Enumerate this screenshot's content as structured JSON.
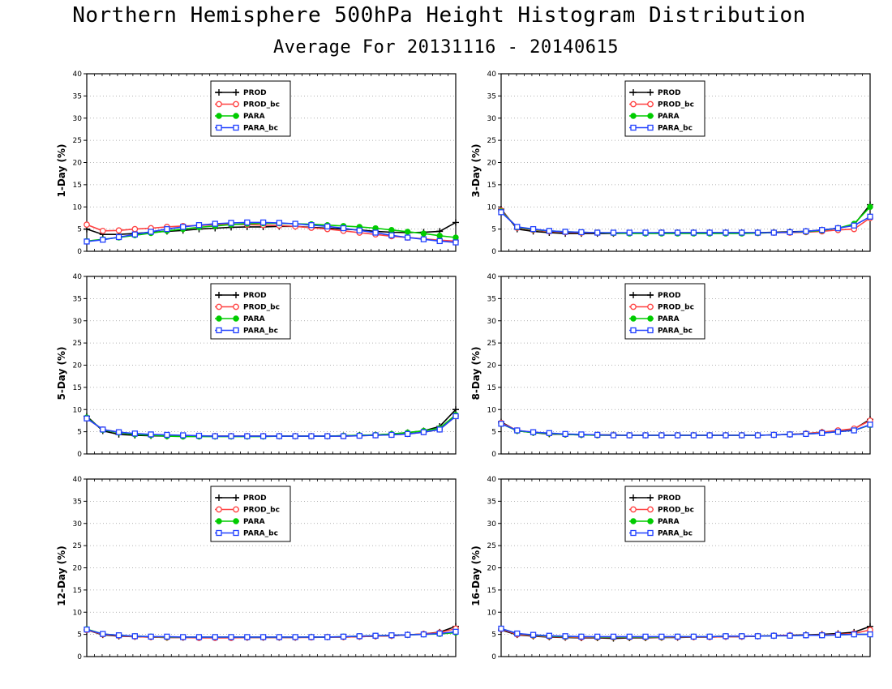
{
  "title": "Northern Hemisphere 500hPa Height Histogram Distribution",
  "subtitle": "Average For 20131116 - 20140615",
  "series_styles": [
    {
      "name": "PROD",
      "color": "#000000",
      "marker": "plus"
    },
    {
      "name": "PROD_bc",
      "color": "#ff4040",
      "marker": "circle-open"
    },
    {
      "name": "PARA",
      "color": "#00cc00",
      "marker": "circle-filled"
    },
    {
      "name": "PARA_bc",
      "color": "#2040ff",
      "marker": "square-open"
    }
  ],
  "chart_data": [
    {
      "type": "line",
      "ylabel": "1-Day (%)",
      "ylim": [
        0,
        40
      ],
      "yticks": [
        0,
        5,
        10,
        15,
        20,
        25,
        30,
        35,
        40
      ],
      "grid": true,
      "legend": "top-left",
      "series": [
        {
          "name": "PROD",
          "values": [
            5.0,
            3.8,
            3.8,
            4.0,
            4.3,
            4.5,
            4.7,
            5.0,
            5.2,
            5.4,
            5.5,
            5.5,
            5.6,
            5.6,
            5.4,
            5.2,
            5.0,
            4.8,
            4.5,
            4.3,
            4.2,
            4.3,
            4.5,
            6.5
          ]
        },
        {
          "name": "PROD_bc",
          "values": [
            6.0,
            4.6,
            4.7,
            5.0,
            5.2,
            5.5,
            5.7,
            5.8,
            6.0,
            6.1,
            6.0,
            5.9,
            5.8,
            5.6,
            5.3,
            5.0,
            4.6,
            4.2,
            3.8,
            3.4,
            3.1,
            2.8,
            2.5,
            2.3
          ]
        },
        {
          "name": "PARA",
          "values": [
            2.3,
            2.7,
            3.1,
            3.6,
            4.1,
            4.6,
            5.0,
            5.4,
            5.7,
            6.0,
            6.2,
            6.3,
            6.3,
            6.2,
            6.1,
            5.9,
            5.7,
            5.5,
            5.2,
            4.8,
            4.4,
            4.0,
            3.5,
            3.1
          ]
        },
        {
          "name": "PARA_bc",
          "values": [
            2.2,
            2.6,
            3.2,
            3.8,
            4.4,
            5.0,
            5.5,
            5.9,
            6.2,
            6.4,
            6.5,
            6.5,
            6.4,
            6.2,
            5.9,
            5.6,
            5.2,
            4.7,
            4.2,
            3.6,
            3.1,
            2.7,
            2.3,
            2.0
          ]
        }
      ]
    },
    {
      "type": "line",
      "ylabel": "3-Day (%)",
      "ylim": [
        0,
        40
      ],
      "yticks": [
        0,
        5,
        10,
        15,
        20,
        25,
        30,
        35,
        40
      ],
      "grid": true,
      "legend": "top-left",
      "series": [
        {
          "name": "PROD",
          "values": [
            9.5,
            5.0,
            4.5,
            4.2,
            4.0,
            4.0,
            4.0,
            4.0,
            4.1,
            4.1,
            4.2,
            4.2,
            4.2,
            4.2,
            4.2,
            4.2,
            4.2,
            4.3,
            4.4,
            4.5,
            4.8,
            5.2,
            6.0,
            10.5
          ]
        },
        {
          "name": "PROD_bc",
          "values": [
            9.2,
            5.3,
            4.8,
            4.5,
            4.3,
            4.2,
            4.2,
            4.1,
            4.1,
            4.1,
            4.1,
            4.1,
            4.1,
            4.1,
            4.1,
            4.1,
            4.1,
            4.2,
            4.2,
            4.3,
            4.5,
            4.8,
            5.0,
            7.5
          ]
        },
        {
          "name": "PARA",
          "values": [
            9.0,
            5.4,
            4.9,
            4.6,
            4.4,
            4.3,
            4.2,
            4.1,
            4.0,
            4.0,
            4.0,
            4.0,
            4.0,
            4.0,
            4.0,
            4.0,
            4.1,
            4.2,
            4.3,
            4.4,
            4.7,
            5.2,
            6.2,
            10.0
          ]
        },
        {
          "name": "PARA_bc",
          "values": [
            8.8,
            5.5,
            5.0,
            4.6,
            4.4,
            4.3,
            4.2,
            4.2,
            4.2,
            4.2,
            4.2,
            4.2,
            4.2,
            4.2,
            4.2,
            4.2,
            4.2,
            4.2,
            4.3,
            4.5,
            4.8,
            5.2,
            5.8,
            7.8
          ]
        }
      ]
    },
    {
      "type": "line",
      "ylabel": "5-Day (%)",
      "ylim": [
        0,
        40
      ],
      "yticks": [
        0,
        5,
        10,
        15,
        20,
        25,
        30,
        35,
        40
      ],
      "grid": true,
      "legend": "top-left",
      "series": [
        {
          "name": "PROD",
          "values": [
            8.5,
            5.2,
            4.4,
            4.2,
            4.1,
            4.0,
            4.0,
            4.0,
            4.0,
            4.0,
            4.0,
            4.0,
            4.0,
            4.0,
            4.0,
            4.0,
            4.1,
            4.2,
            4.3,
            4.5,
            4.8,
            5.2,
            6.2,
            10.0
          ]
        },
        {
          "name": "PROD_bc",
          "values": [
            8.0,
            5.5,
            4.9,
            4.5,
            4.3,
            4.2,
            4.1,
            4.0,
            4.0,
            4.0,
            4.0,
            4.0,
            4.0,
            4.0,
            4.0,
            4.0,
            4.0,
            4.1,
            4.2,
            4.3,
            4.5,
            4.9,
            5.5,
            8.5
          ]
        },
        {
          "name": "PARA",
          "values": [
            8.2,
            5.4,
            4.8,
            4.4,
            4.2,
            4.0,
            3.9,
            3.9,
            3.9,
            3.9,
            3.9,
            3.9,
            4.0,
            4.0,
            4.0,
            4.0,
            4.1,
            4.2,
            4.3,
            4.5,
            4.8,
            5.2,
            5.8,
            8.8
          ]
        },
        {
          "name": "PARA_bc",
          "values": [
            8.0,
            5.5,
            4.9,
            4.6,
            4.4,
            4.3,
            4.2,
            4.1,
            4.0,
            4.0,
            4.0,
            4.0,
            4.0,
            4.0,
            4.0,
            4.0,
            4.0,
            4.1,
            4.2,
            4.3,
            4.5,
            4.9,
            5.5,
            8.5
          ]
        }
      ]
    },
    {
      "type": "line",
      "ylabel": "8-Day (%)",
      "ylim": [
        0,
        40
      ],
      "yticks": [
        0,
        5,
        10,
        15,
        20,
        25,
        30,
        35,
        40
      ],
      "grid": true,
      "legend": "top-left",
      "series": [
        {
          "name": "PROD",
          "values": [
            7.2,
            5.2,
            4.8,
            4.5,
            4.4,
            4.3,
            4.3,
            4.3,
            4.2,
            4.2,
            4.2,
            4.2,
            4.2,
            4.2,
            4.2,
            4.2,
            4.2,
            4.3,
            4.4,
            4.6,
            4.9,
            5.2,
            5.6,
            7.8
          ]
        },
        {
          "name": "PROD_bc",
          "values": [
            7.0,
            5.3,
            4.9,
            4.6,
            4.4,
            4.3,
            4.2,
            4.2,
            4.2,
            4.2,
            4.2,
            4.2,
            4.2,
            4.2,
            4.2,
            4.2,
            4.2,
            4.3,
            4.4,
            4.6,
            4.9,
            5.3,
            5.7,
            7.5
          ]
        },
        {
          "name": "PARA",
          "values": [
            6.8,
            5.2,
            4.8,
            4.6,
            4.4,
            4.3,
            4.2,
            4.2,
            4.2,
            4.2,
            4.2,
            4.2,
            4.2,
            4.2,
            4.2,
            4.2,
            4.2,
            4.3,
            4.4,
            4.5,
            4.7,
            5.0,
            5.3,
            6.5
          ]
        },
        {
          "name": "PARA_bc",
          "values": [
            6.8,
            5.3,
            4.9,
            4.7,
            4.5,
            4.4,
            4.3,
            4.2,
            4.2,
            4.2,
            4.2,
            4.2,
            4.2,
            4.2,
            4.2,
            4.2,
            4.2,
            4.3,
            4.4,
            4.5,
            4.7,
            5.0,
            5.3,
            6.6
          ]
        }
      ]
    },
    {
      "type": "line",
      "ylabel": "12-Day (%)",
      "ylim": [
        0,
        40
      ],
      "yticks": [
        0,
        5,
        10,
        15,
        20,
        25,
        30,
        35,
        40
      ],
      "grid": true,
      "legend": "top-left",
      "series": [
        {
          "name": "PROD",
          "values": [
            6.0,
            4.9,
            4.6,
            4.5,
            4.4,
            4.3,
            4.3,
            4.3,
            4.3,
            4.3,
            4.3,
            4.3,
            4.3,
            4.3,
            4.4,
            4.4,
            4.4,
            4.5,
            4.6,
            4.7,
            4.9,
            5.1,
            5.5,
            6.8
          ]
        },
        {
          "name": "PROD_bc",
          "values": [
            6.0,
            5.0,
            4.7,
            4.5,
            4.4,
            4.3,
            4.3,
            4.2,
            4.2,
            4.2,
            4.3,
            4.3,
            4.3,
            4.3,
            4.3,
            4.4,
            4.4,
            4.5,
            4.6,
            4.7,
            4.9,
            5.1,
            5.4,
            6.3
          ]
        },
        {
          "name": "PARA",
          "values": [
            6.2,
            5.1,
            4.8,
            4.6,
            4.5,
            4.4,
            4.4,
            4.4,
            4.4,
            4.4,
            4.4,
            4.4,
            4.4,
            4.4,
            4.4,
            4.4,
            4.5,
            4.6,
            4.7,
            4.8,
            4.9,
            5.0,
            5.1,
            5.4
          ]
        },
        {
          "name": "PARA_bc",
          "values": [
            6.1,
            5.1,
            4.8,
            4.6,
            4.5,
            4.5,
            4.4,
            4.4,
            4.4,
            4.4,
            4.4,
            4.4,
            4.4,
            4.4,
            4.4,
            4.4,
            4.5,
            4.6,
            4.7,
            4.8,
            4.9,
            5.0,
            5.2,
            5.6
          ]
        }
      ]
    },
    {
      "type": "line",
      "ylabel": "16-Day (%)",
      "ylim": [
        0,
        40
      ],
      "yticks": [
        0,
        5,
        10,
        15,
        20,
        25,
        30,
        35,
        40
      ],
      "grid": true,
      "legend": "top-left",
      "series": [
        {
          "name": "PROD",
          "values": [
            6.0,
            4.9,
            4.6,
            4.4,
            4.3,
            4.2,
            4.2,
            4.1,
            4.2,
            4.2,
            4.3,
            4.3,
            4.4,
            4.4,
            4.5,
            4.5,
            4.6,
            4.7,
            4.8,
            4.9,
            5.0,
            5.2,
            5.5,
            6.8
          ]
        },
        {
          "name": "PROD_bc",
          "values": [
            6.2,
            5.0,
            4.7,
            4.5,
            4.4,
            4.3,
            4.3,
            4.3,
            4.3,
            4.3,
            4.3,
            4.4,
            4.4,
            4.4,
            4.5,
            4.5,
            4.6,
            4.7,
            4.8,
            4.8,
            4.9,
            5.0,
            5.2,
            6.0
          ]
        },
        {
          "name": "PARA",
          "values": [
            6.3,
            5.2,
            4.8,
            4.6,
            4.5,
            4.5,
            4.4,
            4.4,
            4.4,
            4.4,
            4.4,
            4.5,
            4.5,
            4.5,
            4.6,
            4.6,
            4.6,
            4.7,
            4.7,
            4.8,
            4.8,
            4.9,
            5.0,
            5.0
          ]
        },
        {
          "name": "PARA_bc",
          "values": [
            6.3,
            5.2,
            4.9,
            4.7,
            4.6,
            4.5,
            4.5,
            4.5,
            4.5,
            4.5,
            4.5,
            4.5,
            4.5,
            4.5,
            4.6,
            4.6,
            4.6,
            4.7,
            4.7,
            4.8,
            4.8,
            4.9,
            5.0,
            5.0
          ]
        }
      ]
    }
  ]
}
